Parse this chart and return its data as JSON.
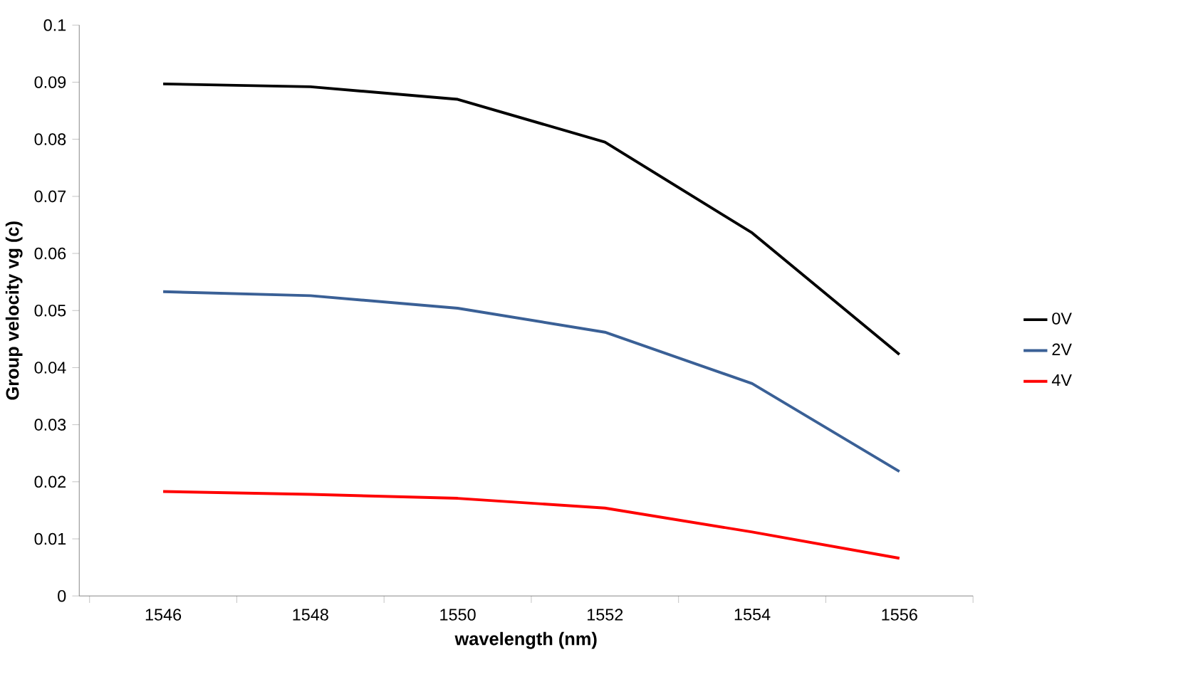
{
  "chart_data": {
    "type": "line",
    "xlabel": "wavelength (nm)",
    "ylabel": "Group velocity vg (c)",
    "categories": [
      "1546",
      "1548",
      "1550",
      "1552",
      "1554",
      "1556"
    ],
    "series": [
      {
        "name": "0V",
        "color": "#000000",
        "values": [
          0.0897,
          0.0892,
          0.087,
          0.0795,
          0.0636,
          0.0423
        ]
      },
      {
        "name": "2V",
        "color": "#3a6096",
        "values": [
          0.0533,
          0.0526,
          0.0504,
          0.0462,
          0.0372,
          0.0218
        ]
      },
      {
        "name": "4V",
        "color": "#ff0000",
        "values": [
          0.0183,
          0.0178,
          0.0171,
          0.0154,
          0.0112,
          0.0066
        ]
      }
    ],
    "ylim": [
      0,
      0.1
    ],
    "yticks": [
      0,
      0.01,
      0.02,
      0.03,
      0.04,
      0.05,
      0.06,
      0.07,
      0.08,
      0.09,
      0.1
    ],
    "legend": "right",
    "marker": "none"
  }
}
